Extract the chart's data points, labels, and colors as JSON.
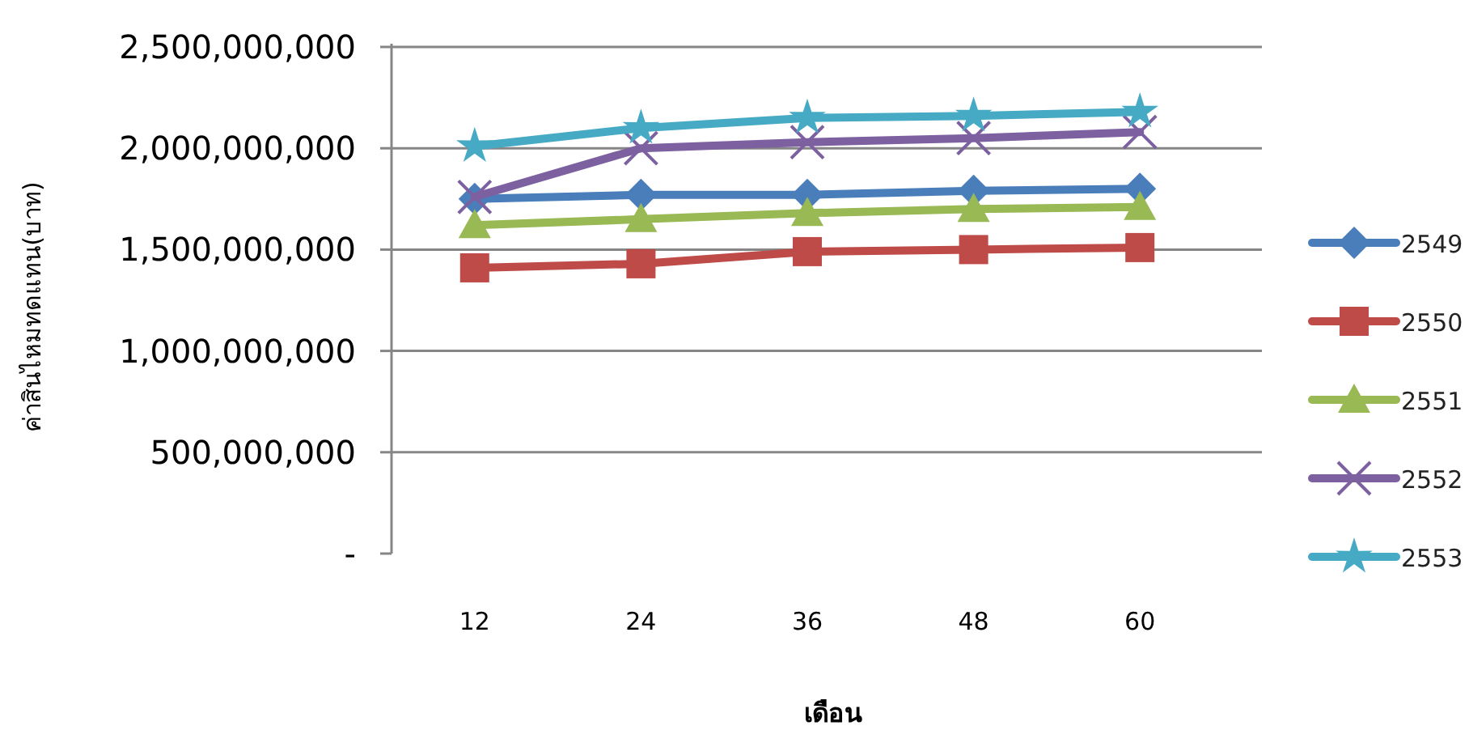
{
  "chart_data": {
    "type": "line",
    "xlabel": "**เดือน**",
    "ylabel": "ค่าสินไหมทดแทน(บาท)",
    "categories": [
      "12",
      "24",
      "36",
      "48",
      "60"
    ],
    "ylim": [
      0,
      2500000000
    ],
    "yticks": [
      {
        "value": 0,
        "label": "-"
      },
      {
        "value": 500000000,
        "label": "500,000,000"
      },
      {
        "value": 1000000000,
        "label": "1,000,000,000"
      },
      {
        "value": 1500000000,
        "label": "1,500,000,000"
      },
      {
        "value": 2000000000,
        "label": "2,000,000,000"
      },
      {
        "value": 2500000000,
        "label": "2,500,000,000"
      }
    ],
    "grid": "y",
    "legend": "right",
    "series": [
      {
        "name": "2549",
        "color": "#4a7ebb",
        "marker": "diamond",
        "values": [
          1750000000,
          1770000000,
          1770000000,
          1790000000,
          1800000000
        ]
      },
      {
        "name": "2550",
        "color": "#be4b48",
        "marker": "square",
        "values": [
          1410000000,
          1430000000,
          1490000000,
          1500000000,
          1510000000
        ]
      },
      {
        "name": "2551",
        "color": "#98b954",
        "marker": "triangle",
        "values": [
          1620000000,
          1650000000,
          1680000000,
          1700000000,
          1710000000
        ]
      },
      {
        "name": "2552",
        "color": "#7d60a0",
        "marker": "cross",
        "values": [
          1760000000,
          2000000000,
          2030000000,
          2050000000,
          2080000000
        ]
      },
      {
        "name": "2553",
        "color": "#46aac5",
        "marker": "star",
        "values": [
          2010000000,
          2100000000,
          2150000000,
          2160000000,
          2180000000
        ]
      }
    ]
  }
}
